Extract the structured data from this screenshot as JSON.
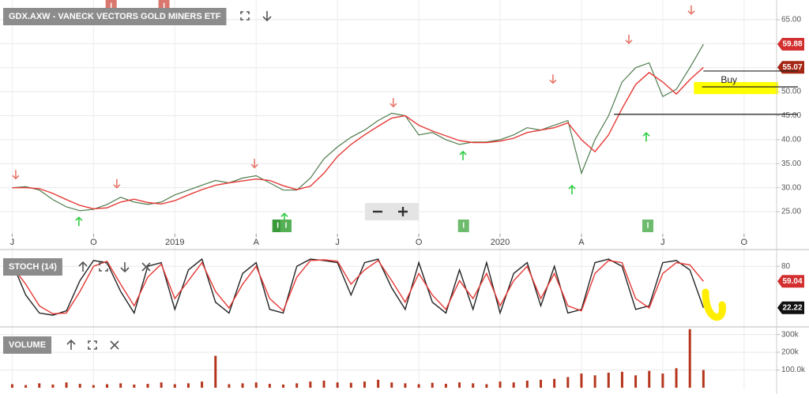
{
  "chart_data": [
    {
      "type": "line",
      "title": "GDX.AXW - VANECK VECTORS GOLD MINERS ETF",
      "x": [
        0,
        0.5,
        1,
        1.5,
        2,
        2.5,
        3,
        3.5,
        4,
        4.5,
        5,
        5.5,
        6,
        6.5,
        7,
        7.5,
        8,
        8.5,
        9,
        9.5,
        10,
        10.5,
        11,
        11.5,
        12,
        12.5,
        13,
        13.5,
        14,
        14.5,
        15,
        15.5,
        16,
        16.5,
        17,
        17.5,
        18,
        18.5,
        19,
        19.5,
        20,
        20.5,
        21,
        21.5,
        22,
        22.5,
        23,
        23.5,
        24,
        24.5,
        25,
        25.5
      ],
      "series": [
        {
          "color": "#4f7d4f",
          "tag_color": "#d32f2f",
          "values": [
            30.0,
            30.2,
            29.5,
            27.5,
            26.0,
            25.2,
            25.5,
            26.5,
            28.0,
            27.0,
            26.5,
            27.0,
            28.5,
            29.5,
            30.5,
            31.5,
            31.0,
            32.0,
            32.5,
            31.0,
            29.5,
            29.5,
            32.0,
            36.0,
            38.5,
            40.5,
            42.0,
            44.0,
            45.5,
            45.0,
            41.0,
            41.5,
            40.0,
            39.0,
            39.5,
            39.5,
            40.0,
            41.0,
            42.5,
            42.0,
            43.0,
            44.0,
            33.0,
            40.0,
            45.0,
            52.0,
            55.0,
            56.0,
            49.0,
            50.5,
            55.0,
            59.88
          ]
        },
        {
          "color": "#e53935",
          "tag_color": "#a52714",
          "values": [
            30.0,
            30.0,
            29.8,
            28.8,
            27.5,
            26.3,
            25.6,
            25.8,
            27.0,
            27.6,
            26.9,
            26.6,
            27.3,
            28.5,
            29.6,
            30.5,
            31.0,
            31.4,
            31.8,
            31.5,
            30.4,
            29.6,
            30.3,
            33.0,
            36.5,
            39.0,
            41.0,
            42.8,
            44.5,
            45.0,
            43.0,
            41.8,
            40.8,
            39.8,
            39.4,
            39.4,
            39.7,
            40.3,
            41.5,
            42.0,
            42.5,
            43.5,
            40.0,
            37.5,
            41.0,
            46.5,
            51.5,
            54.0,
            52.0,
            49.5,
            52.5,
            55.07
          ]
        }
      ],
      "xlim": [
        -0.45,
        28.2
      ],
      "xticks": [
        {
          "value": 0,
          "label": "J"
        },
        {
          "value": 3,
          "label": "O"
        },
        {
          "value": 6,
          "label": "2019"
        },
        {
          "value": 9,
          "label": "A"
        },
        {
          "value": 12,
          "label": "J"
        },
        {
          "value": 15,
          "label": "O"
        },
        {
          "value": 18,
          "label": "2020"
        },
        {
          "value": 21,
          "label": "A"
        },
        {
          "value": 24,
          "label": "J"
        },
        {
          "value": 27,
          "label": "O"
        }
      ],
      "ylim": [
        20.4,
        69.1
      ],
      "yticks": [
        {
          "value": 25,
          "label": "25.00"
        },
        {
          "value": 30,
          "label": "30.00"
        },
        {
          "value": 35,
          "label": "35.00"
        },
        {
          "value": 40,
          "label": "40.00"
        },
        {
          "value": 45,
          "label": "45.00"
        },
        {
          "value": 50,
          "label": "50.00"
        },
        {
          "value": 55,
          "label": "55.00"
        },
        {
          "value": 60,
          "label": "60.00"
        },
        {
          "value": 65,
          "label": "65.00"
        }
      ],
      "grid": true,
      "signals": [
        {
          "direction": "down",
          "color": "#e8776b",
          "x": [
            0.13,
            3.86,
            8.94,
            14.06,
            19.95,
            22.75,
            25.05
          ],
          "y": [
            32.7,
            30.8,
            35.0,
            47.7,
            52.6,
            60.9,
            67.0
          ]
        },
        {
          "direction": "up",
          "color": "#2ecc40",
          "x": [
            2.46,
            10.04,
            16.63,
            20.65,
            23.39
          ],
          "y": [
            23.0,
            23.8,
            36.7,
            29.6,
            40.6
          ]
        }
      ],
      "events": [
        {
          "x": 3.65,
          "label": "I",
          "color": "#d9776e",
          "side": "top"
        },
        {
          "x": 5.6,
          "label": "I",
          "color": "#d9776e",
          "side": "top"
        },
        {
          "x": 9.8,
          "label": "I",
          "color": "#3a9a3a",
          "side": "bottom"
        },
        {
          "x": 10.1,
          "label": "I",
          "color": "#55b055",
          "side": "bottom"
        },
        {
          "x": 16.65,
          "label": "I",
          "color": "#6dbb6d",
          "side": "bottom"
        },
        {
          "x": 23.45,
          "label": "I",
          "color": "#6dbb6d",
          "side": "bottom"
        }
      ],
      "hlines": [
        {
          "value": 54.3,
          "from": 25.5
        },
        {
          "value": 51.0,
          "from": 25.45
        },
        {
          "value": 45.3,
          "from": 22.2
        }
      ],
      "annotations": [
        {
          "text": "Buy",
          "ylim": [
            49.5,
            52.0
          ],
          "from": 25.15,
          "color": "#ffff00"
        }
      ]
    },
    {
      "type": "line",
      "title": "STOCH (14)",
      "x": [
        0,
        0.5,
        1,
        1.5,
        2,
        2.5,
        3,
        3.5,
        4,
        4.5,
        5,
        5.5,
        6,
        6.5,
        7,
        7.5,
        8,
        8.5,
        9,
        9.5,
        10,
        10.5,
        11,
        11.5,
        12,
        12.5,
        13,
        13.5,
        14,
        14.5,
        15,
        15.5,
        16,
        16.5,
        17,
        17.5,
        18,
        18.5,
        19,
        19.5,
        20,
        20.5,
        21,
        21.5,
        22,
        22.5,
        23,
        23.5,
        24,
        24.5,
        25,
        25.5
      ],
      "series": [
        {
          "color": "#222222",
          "tag_color": "#111111",
          "values": [
            85,
            40,
            15,
            12,
            18,
            60,
            88,
            85,
            45,
            15,
            80,
            85,
            20,
            75,
            90,
            30,
            15,
            70,
            85,
            20,
            15,
            80,
            90,
            88,
            85,
            40,
            85,
            90,
            50,
            20,
            85,
            30,
            15,
            75,
            20,
            85,
            15,
            70,
            85,
            25,
            80,
            15,
            20,
            85,
            90,
            80,
            20,
            25,
            85,
            88,
            75,
            22.22
          ]
        },
        {
          "color": "#e53935",
          "tag_color": "#d32f2f",
          "values": [
            80,
            55,
            25,
            14,
            15,
            45,
            80,
            87,
            55,
            25,
            65,
            83,
            35,
            60,
            85,
            45,
            22,
            55,
            80,
            35,
            18,
            65,
            88,
            89,
            87,
            55,
            75,
            88,
            60,
            30,
            70,
            40,
            20,
            60,
            35,
            70,
            25,
            60,
            80,
            35,
            70,
            25,
            18,
            70,
            88,
            85,
            35,
            22,
            70,
            85,
            82,
            59.04
          ]
        }
      ],
      "xlim": [
        -0.45,
        28.2
      ],
      "ylim": [
        0,
        100
      ],
      "yticks": [
        80
      ],
      "grid": true
    },
    {
      "type": "bar",
      "title": "VOLUME",
      "x": [
        0,
        0.5,
        1,
        1.5,
        2,
        2.5,
        3,
        3.5,
        4,
        4.5,
        5,
        5.5,
        6,
        6.5,
        7,
        7.5,
        8,
        8.5,
        9,
        9.5,
        10,
        10.5,
        11,
        11.5,
        12,
        12.5,
        13,
        13.5,
        14,
        14.5,
        15,
        15.5,
        16,
        16.5,
        17,
        17.5,
        18,
        18.5,
        19,
        19.5,
        20,
        20.5,
        21,
        21.5,
        22,
        22.5,
        23,
        23.5,
        24,
        24.5,
        25,
        25.5
      ],
      "values": [
        20000,
        15000,
        25000,
        18000,
        30000,
        22000,
        15000,
        20000,
        25000,
        18000,
        22000,
        30000,
        20000,
        25000,
        35000,
        180000,
        20000,
        25000,
        30000,
        22000,
        18000,
        25000,
        35000,
        40000,
        30000,
        28000,
        35000,
        45000,
        30000,
        25000,
        20000,
        28000,
        22000,
        30000,
        25000,
        20000,
        35000,
        30000,
        40000,
        45000,
        50000,
        60000,
        80000,
        70000,
        85000,
        90000,
        70000,
        95000,
        80000,
        110000,
        330000,
        100000
      ],
      "color": "#b5361c",
      "xlim": [
        -0.45,
        28.2
      ],
      "ylim": [
        0,
        325000
      ],
      "yticks": [
        {
          "value": 100000,
          "label": "100.0k"
        },
        {
          "value": 200000,
          "label": "200k"
        },
        {
          "value": 300000,
          "label": "300k"
        }
      ],
      "grid": true
    }
  ]
}
